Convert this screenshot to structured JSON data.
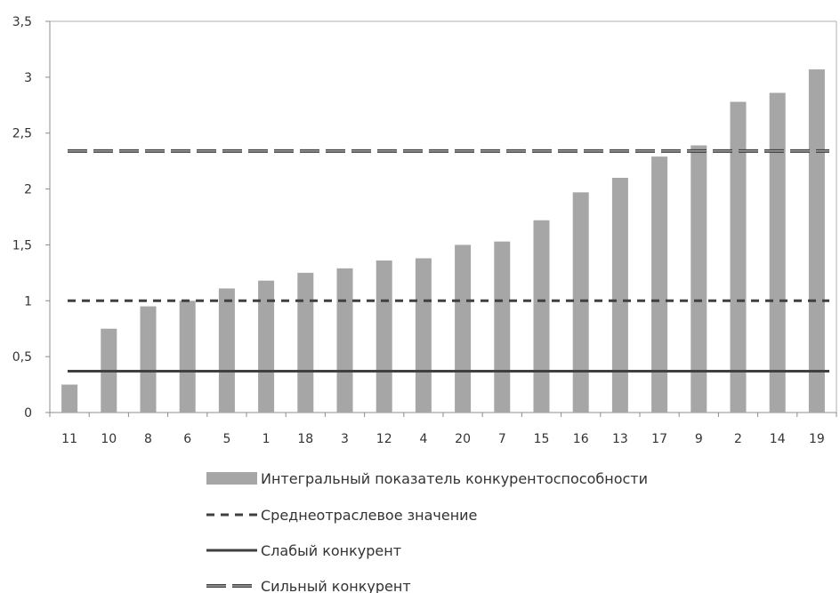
{
  "chart_data": {
    "type": "bar",
    "categories": [
      "11",
      "10",
      "8",
      "6",
      "5",
      "1",
      "18",
      "3",
      "12",
      "4",
      "20",
      "7",
      "15",
      "16",
      "13",
      "17",
      "9",
      "2",
      "14",
      "19"
    ],
    "series": [
      {
        "name": "Интегральный показатель конкурентоспособности",
        "type": "bar",
        "color": "#a6a6a6",
        "values": [
          0.25,
          0.75,
          0.95,
          1.0,
          1.11,
          1.18,
          1.25,
          1.29,
          1.36,
          1.38,
          1.5,
          1.53,
          1.72,
          1.97,
          2.1,
          2.29,
          2.39,
          2.78,
          2.86,
          3.07
        ]
      },
      {
        "name": "Среднеотраслевое значение",
        "type": "line",
        "style": "dashed",
        "color": "#404040",
        "value": 1.0
      },
      {
        "name": "Слабый конкурент",
        "type": "line",
        "style": "solid",
        "color": "#404040",
        "value": 0.37
      },
      {
        "name": "Сильный конкурент",
        "type": "line",
        "style": "double-dashed",
        "color": "#404040",
        "value": 2.34
      }
    ],
    "ylim": [
      0,
      3.5
    ],
    "yticks": [
      "0",
      "0,5",
      "1",
      "1,5",
      "2",
      "2,5",
      "3",
      "3,5"
    ],
    "ytick_values": [
      0,
      0.5,
      1,
      1.5,
      2,
      2.5,
      3,
      3.5
    ],
    "grid": false,
    "legend_position": "bottom"
  }
}
